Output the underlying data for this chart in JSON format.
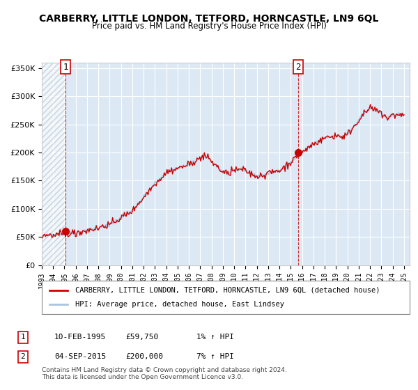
{
  "title": "CARBERRY, LITTLE LONDON, TETFORD, HORNCASTLE, LN9 6QL",
  "subtitle": "Price paid vs. HM Land Registry's House Price Index (HPI)",
  "xlim": [
    1993.0,
    2025.5
  ],
  "ylim": [
    0,
    360000
  ],
  "yticks": [
    0,
    50000,
    100000,
    150000,
    200000,
    250000,
    300000,
    350000
  ],
  "ytick_labels": [
    "£0",
    "£50K",
    "£100K",
    "£150K",
    "£200K",
    "£250K",
    "£300K",
    "£350K"
  ],
  "xtick_years": [
    1993,
    1994,
    1995,
    1996,
    1997,
    1998,
    1999,
    2000,
    2001,
    2002,
    2003,
    2004,
    2005,
    2006,
    2007,
    2008,
    2009,
    2010,
    2011,
    2012,
    2013,
    2014,
    2015,
    2016,
    2017,
    2018,
    2019,
    2020,
    2021,
    2022,
    2023,
    2024,
    2025
  ],
  "hpi_color": "#aac4e0",
  "price_color": "#cc0000",
  "marker_color": "#cc0000",
  "bg_color": "#dce9f5",
  "grid_color": "#ffffff",
  "hatch_color": "#c0c8d8",
  "sale1_x": 1995.11,
  "sale1_y": 59750,
  "sale2_x": 2015.67,
  "sale2_y": 200000,
  "legend_label1": "CARBERRY, LITTLE LONDON, TETFORD, HORNCASTLE, LN9 6QL (detached house)",
  "legend_label2": "HPI: Average price, detached house, East Lindsey",
  "annotation1_label": "1",
  "annotation2_label": "2",
  "footnote": "Contains HM Land Registry data © Crown copyright and database right 2024.\nThis data is licensed under the Open Government Licence v3.0.",
  "table_row1": [
    "1",
    "10-FEB-1995",
    "£59,750",
    "1% ↑ HPI"
  ],
  "table_row2": [
    "2",
    "04-SEP-2015",
    "£200,000",
    "7% ↑ HPI"
  ]
}
